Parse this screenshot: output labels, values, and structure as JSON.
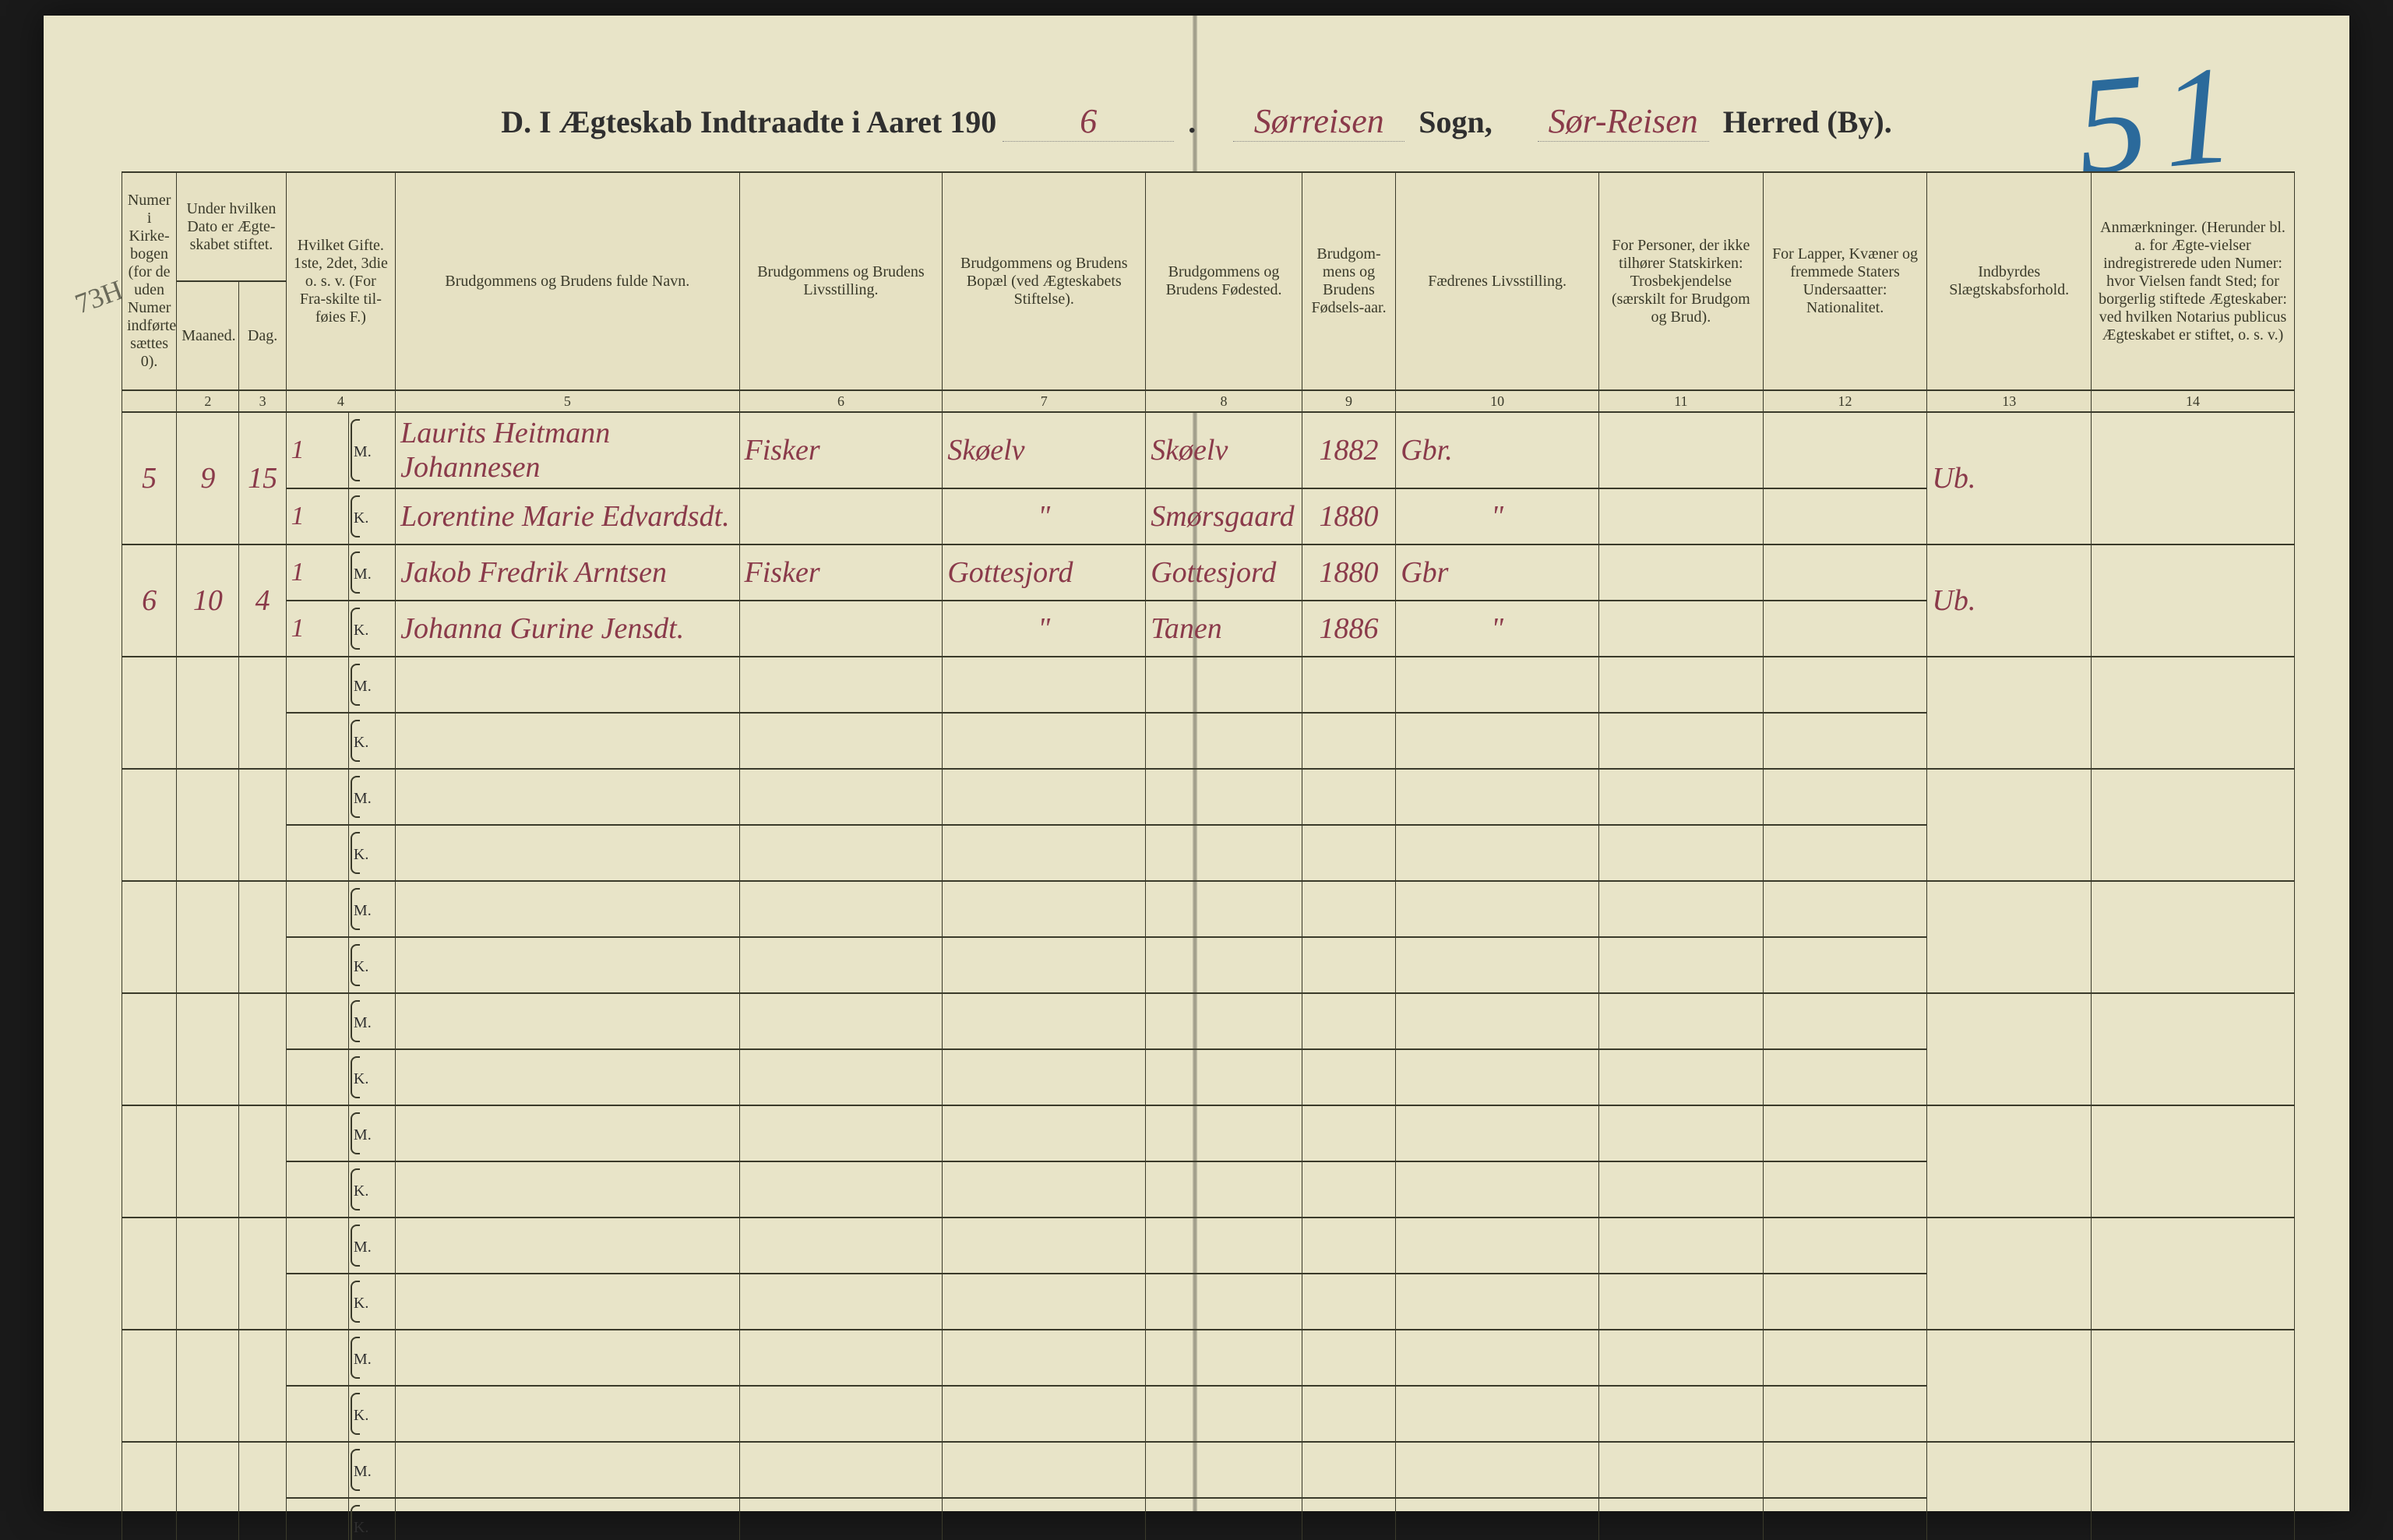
{
  "page_number_handwritten": "51",
  "title": {
    "prefix": "D.  I Ægteskab Indtraadte i Aaret 190",
    "year_digit": "6",
    "label_sogn": "Sogn,",
    "label_herred": "Herred (By).",
    "sogn_value": "Sørreisen",
    "herred_value": "Sør-Reisen"
  },
  "columns": {
    "h1": "Numer i Kirke-bogen (for de uden Numer indførte sættes 0).",
    "h2": "Under hvilken Dato er Ægte-skabet stiftet.",
    "h2a": "Maaned.",
    "h2b": "Dag.",
    "h3": "Hvilket Gifte. 1ste, 2det, 3die o. s. v. (For Fra-skilte til-føies F.)",
    "h4": "Brudgommens og Brudens fulde Navn.",
    "h5": "Brudgommens og Brudens Livsstilling.",
    "h6": "Brudgommens og Brudens Bopæl (ved Ægteskabets Stiftelse).",
    "h7": "Brudgommens og Brudens Fødested.",
    "h8": "Brudgom-mens og Brudens Fødsels-aar.",
    "h9": "Fædrenes Livsstilling.",
    "h10": "For Personer, der ikke tilhører Statskirken: Trosbekjendelse (særskilt for Brudgom og Brud).",
    "h11": "For Lapper, Kvæner og fremmede Staters Undersaatter: Nationalitet.",
    "h12": "Indbyrdes Slægtskabsforhold.",
    "h13": "Anmærkninger. (Herunder bl. a. for Ægte-vielser indregistrerede uden Numer: hvor Vielsen fandt Sted; for borgerlig stiftede Ægteskaber: ved hvilken Notarius publicus Ægteskabet er stiftet, o. s. v.)"
  },
  "colnums": [
    "",
    "2",
    "3",
    "4",
    "5",
    "6",
    "7",
    "8",
    "9",
    "10",
    "11",
    "12",
    "13",
    "14"
  ],
  "margin_note": "73H",
  "entries": [
    {
      "num": "5",
      "month": "9",
      "day": "15",
      "groom": {
        "gifte": "1",
        "name": "Laurits Heitmann Johannesen",
        "occupation": "Fisker",
        "residence": "Skøelv",
        "birthplace": "Skøelv",
        "birthyear": "1882",
        "father_occ": "Gbr."
      },
      "bride": {
        "gifte": "1",
        "name": "Lorentine Marie Edvardsdt.",
        "occupation": "",
        "residence": "\"",
        "birthplace": "Smørsgaard",
        "birthyear": "1880",
        "father_occ": "\""
      },
      "kinship": "Ub."
    },
    {
      "num": "6",
      "month": "10",
      "day": "4",
      "groom": {
        "gifte": "1",
        "name": "Jakob Fredrik Arntsen",
        "occupation": "Fisker",
        "residence": "Gottesjord",
        "birthplace": "Gottesjord",
        "birthyear": "1880",
        "father_occ": "Gbr"
      },
      "bride": {
        "gifte": "1",
        "name": "Johanna Gurine Jensdt.",
        "occupation": "",
        "residence": "\"",
        "birthplace": "Tanen",
        "birthyear": "1886",
        "father_occ": "\""
      },
      "kinship": "Ub."
    }
  ],
  "sex_labels": {
    "m": "M.",
    "k": "K."
  },
  "colors": {
    "paper": "#e8e4c8",
    "ink_print": "#2f2f2f",
    "ink_hand": "#8a3a4a",
    "ink_pagenum": "#2b6a9b",
    "rule": "#3a3a2a"
  }
}
